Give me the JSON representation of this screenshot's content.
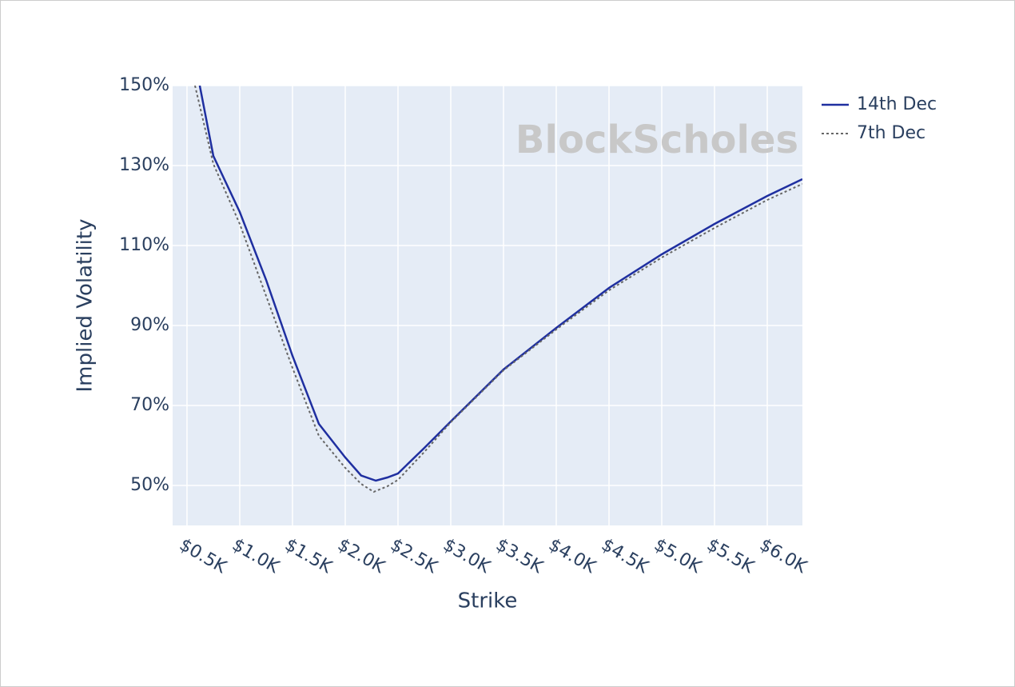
{
  "chart_data": {
    "type": "line",
    "x_label": "Strike",
    "y_label": "Implied Volatility",
    "watermark": "BlockScholes",
    "xlim": [
      364,
      6333
    ],
    "ylim": [
      40,
      150
    ],
    "xticks": [
      {
        "value": 500,
        "label": "$0.5K"
      },
      {
        "value": 1000,
        "label": "$1.0K"
      },
      {
        "value": 1500,
        "label": "$1.5K"
      },
      {
        "value": 2000,
        "label": "$2.0K"
      },
      {
        "value": 2500,
        "label": "$2.5K"
      },
      {
        "value": 3000,
        "label": "$3.0K"
      },
      {
        "value": 3500,
        "label": "$3.5K"
      },
      {
        "value": 4000,
        "label": "$4.0K"
      },
      {
        "value": 4500,
        "label": "$4.5K"
      },
      {
        "value": 5000,
        "label": "$5.0K"
      },
      {
        "value": 5500,
        "label": "$5.5K"
      },
      {
        "value": 6000,
        "label": "$6.0K"
      }
    ],
    "yticks": [
      {
        "value": 50,
        "label": "50%"
      },
      {
        "value": 70,
        "label": "70%"
      },
      {
        "value": 90,
        "label": "90%"
      },
      {
        "value": 110,
        "label": "110%"
      },
      {
        "value": 130,
        "label": "130%"
      },
      {
        "value": 150,
        "label": "150%"
      }
    ],
    "grid": true,
    "legend": "top-right",
    "series": [
      {
        "name": "14th Dec",
        "color": "#1f2fa0",
        "dash": "solid",
        "x": [
          621,
          750,
          1000,
          1250,
          1500,
          1750,
          2000,
          2150,
          2290,
          2400,
          2500,
          2750,
          3000,
          3500,
          4000,
          4500,
          5000,
          5500,
          6000,
          6333
        ],
        "values": [
          150,
          132.4,
          118.4,
          101.4,
          82.4,
          65.4,
          57,
          52.5,
          51.2,
          52,
          53,
          59.4,
          66,
          79,
          89.4,
          99.4,
          107.8,
          115.4,
          122.4,
          126.6
        ]
      },
      {
        "name": "7th Dec",
        "color": "#666666",
        "dash": "dot",
        "x": [
          576,
          750,
          1000,
          1250,
          1500,
          1750,
          2000,
          2150,
          2270,
          2400,
          2500,
          2750,
          3000,
          3500,
          4000,
          4500,
          5000,
          5500,
          6000,
          6333
        ],
        "values": [
          150,
          130.4,
          115.4,
          97.4,
          79.4,
          62.4,
          54.4,
          50.4,
          48.4,
          49.8,
          51.4,
          58.4,
          65.8,
          78.8,
          89,
          98.8,
          107,
          114.4,
          121.4,
          125.4
        ]
      }
    ]
  }
}
